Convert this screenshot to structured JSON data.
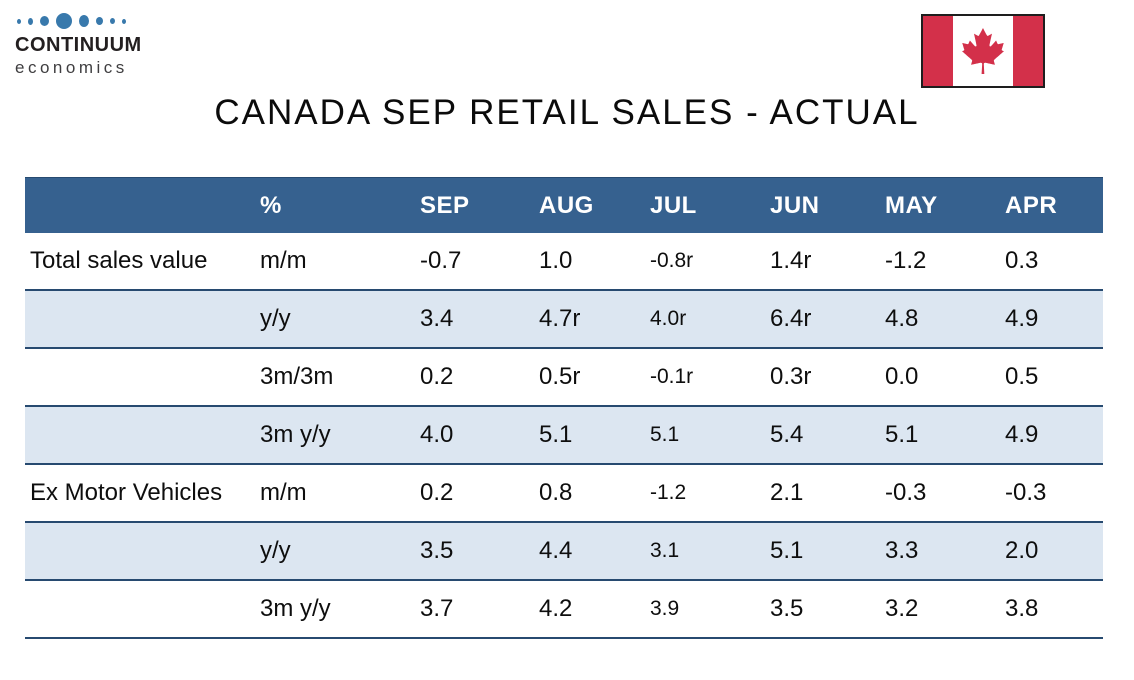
{
  "logo": {
    "company": "CONTINUUM",
    "tagline": "economics"
  },
  "flag": {
    "country": "Canada"
  },
  "title": "CANADA SEP RETAIL SALES - ACTUAL",
  "chart_data": {
    "type": "table",
    "title": "CANADA SEP RETAIL SALES - ACTUAL",
    "columns": [
      "",
      "%",
      "SEP",
      "AUG",
      "JUL",
      "JUN",
      "MAY",
      "APR"
    ],
    "rows": [
      [
        "Total sales value",
        "m/m",
        "-0.7",
        "1.0",
        "-0.8r",
        "1.4r",
        "-1.2",
        "0.3"
      ],
      [
        "",
        "y/y",
        "3.4",
        "4.7r",
        "4.0r",
        "6.4r",
        "4.8",
        "4.9"
      ],
      [
        "",
        "3m/3m",
        "0.2",
        "0.5r",
        "-0.1r",
        "0.3r",
        "0.0",
        "0.5"
      ],
      [
        "",
        "3m y/y",
        "4.0",
        "5.1",
        "5.1",
        "5.4",
        "5.1",
        "4.9"
      ],
      [
        "Ex Motor Vehicles",
        "m/m",
        "0.2",
        "0.8",
        "-1.2",
        "2.1",
        "-0.3",
        "-0.3"
      ],
      [
        "",
        "y/y",
        "3.5",
        "4.4",
        "3.1",
        "5.1",
        "3.3",
        "2.0"
      ],
      [
        "",
        "3m y/y",
        "3.7",
        "4.2",
        "3.9",
        "3.5",
        "3.2",
        "3.8"
      ]
    ],
    "layout": {
      "legend": "none",
      "grid": "horizontal row separators",
      "striped_rows": true
    }
  },
  "colors": {
    "header_bg": "#36618F",
    "row_alt_bg": "#DCE6F1",
    "row_border": "#274A70",
    "flag_red": "#D3304A",
    "logo_dots": "#3879AC"
  }
}
